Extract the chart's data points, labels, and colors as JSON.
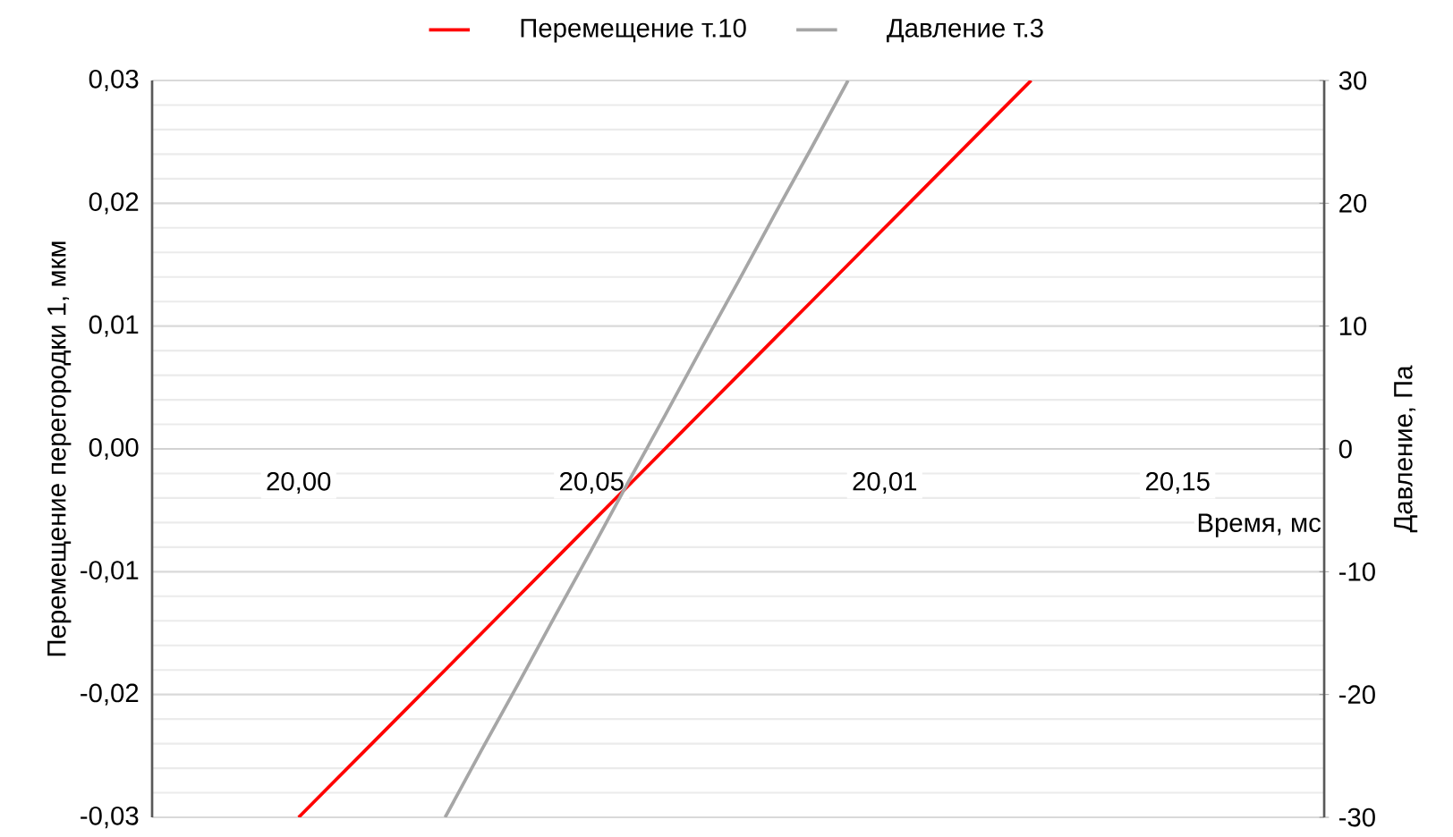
{
  "chart_data": {
    "type": "line",
    "xlabel": "Время, мс",
    "ylabel": "Перемещение перегородки 1, мкм",
    "y2label": "Давление, Па",
    "categories": [
      "20,00",
      null,
      null,
      null,
      null,
      null,
      null,
      null,
      "20,05",
      null,
      null,
      null,
      null,
      null,
      null,
      null,
      "20,01",
      null,
      null,
      null,
      null,
      null,
      null,
      null,
      "20,15"
    ],
    "ylim": [
      -0.03,
      0.03
    ],
    "yticks": [
      {
        "value": -0.03,
        "label": "-0,03"
      },
      {
        "value": -0.02,
        "label": "-0,02"
      },
      {
        "value": -0.01,
        "label": "-0,01"
      },
      {
        "value": 0,
        "label": "0,00"
      },
      {
        "value": 0.01,
        "label": "0,01"
      },
      {
        "value": 0.02,
        "label": "0,02"
      },
      {
        "value": 0.03,
        "label": "0,03"
      }
    ],
    "y2lim": [
      -30,
      30
    ],
    "y2ticks": [
      -30,
      -20,
      -10,
      0,
      10,
      20,
      30
    ],
    "series": [
      {
        "name": "Перемещение т.10",
        "color": "#ff0000",
        "values": [
          -0.03,
          -0.027,
          -0.024,
          -0.021,
          -0.018,
          -0.015,
          -0.012,
          -0.009,
          -0.006,
          -0.003,
          0,
          0.003,
          0.006,
          0.009,
          0.012,
          0.015,
          0.018,
          0.021,
          0.024,
          0.027,
          0.03,
          null,
          null,
          null,
          null
        ]
      },
      {
        "name": "Давление  т.3",
        "color": "#a6a6a6",
        "axis": "y2",
        "values": [
          null,
          null,
          null,
          null,
          -30,
          -24.5,
          -19.1,
          -13.6,
          -8.2,
          -2.7,
          2.7,
          8.2,
          13.6,
          19.1,
          24.5,
          30,
          null,
          null,
          null,
          null,
          null,
          null,
          null,
          null,
          null
        ]
      }
    ],
    "grid": "y",
    "legend": "top"
  }
}
